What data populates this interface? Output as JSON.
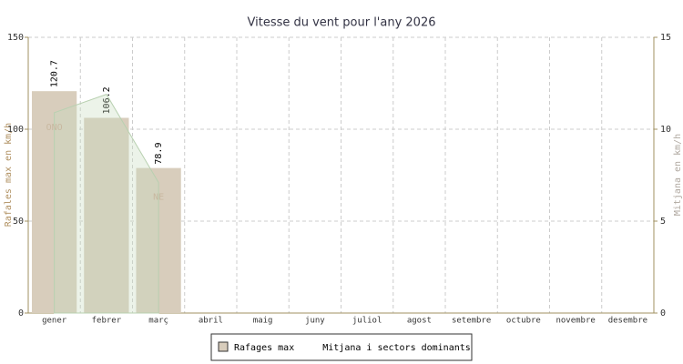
{
  "chart_data": {
    "type": "bar",
    "title": "Vitesse du vent pour l'any 2026",
    "y_label": "Rafales max en km/h",
    "y2_label": "Mitjana en km/h",
    "categories": [
      "gener",
      "febrer",
      "març",
      "abril",
      "maig",
      "juny",
      "juliol",
      "agost",
      "setembre",
      "octubre",
      "novembre",
      "desembre"
    ],
    "series": [
      {
        "name": "Rafages max",
        "type": "bar",
        "color": "#d8cdbc",
        "values": [
          120.7,
          106.2,
          78.9,
          null,
          null,
          null,
          null,
          null,
          null,
          null,
          null,
          null
        ]
      },
      {
        "name": "Mitjana i sectors dominants",
        "type": "area",
        "axis": "y2",
        "color": "#c8ddc0",
        "values": [
          10.9,
          11.9,
          7.1,
          null,
          null,
          null,
          null,
          null,
          null,
          null,
          null,
          null
        ],
        "sectors": [
          "ONO",
          null,
          "NE",
          null,
          null,
          null,
          null,
          null,
          null,
          null,
          null,
          null
        ]
      }
    ],
    "ylim": [
      0,
      150
    ],
    "yticks": [
      0,
      50,
      100,
      150
    ],
    "y2lim": [
      0,
      15
    ],
    "y2ticks": [
      0,
      5,
      10,
      15
    ],
    "grid": true,
    "legend": "bottom"
  }
}
